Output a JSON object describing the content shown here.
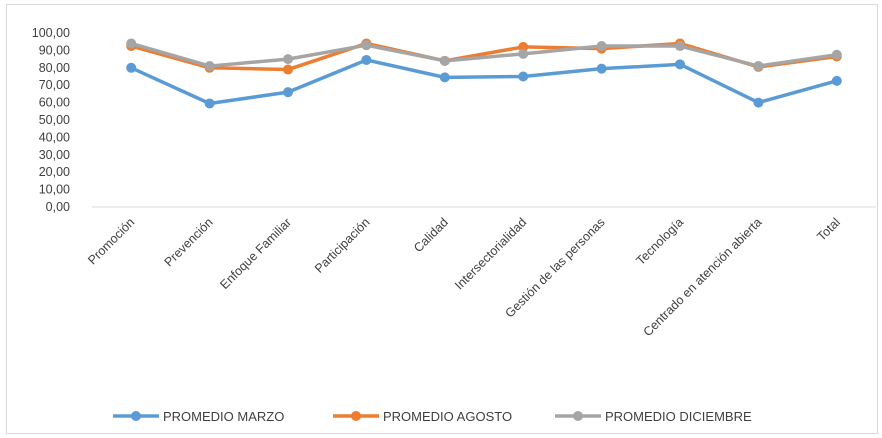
{
  "chart_data": {
    "type": "line",
    "categories": [
      "Promoción",
      "Prevención",
      "Enfoque Familiar",
      "Participación",
      "Calidad",
      "Intersectorialidad",
      "Gestión de las personas",
      "Tecnología",
      "Centrado en atención abierta",
      "Total"
    ],
    "y_ticks": [
      "0,00",
      "10,00",
      "20,00",
      "30,00",
      "40,00",
      "50,00",
      "60,00",
      "70,00",
      "80,00",
      "90,00",
      "100,00"
    ],
    "ylim": [
      0,
      100
    ],
    "grid": false,
    "legend_position": "bottom",
    "series": [
      {
        "name": "PROMEDIO MARZO",
        "color": "#5b9bd5",
        "values": [
          80,
          59.5,
          66,
          84.5,
          74.5,
          75,
          79.5,
          82,
          60,
          72.5
        ]
      },
      {
        "name": "PROMEDIO AGOSTO",
        "color": "#ed7d31",
        "values": [
          92.5,
          80,
          79,
          94,
          84,
          92,
          91,
          94,
          80.5,
          86.5
        ]
      },
      {
        "name": "PROMEDIO DICIEMBRE",
        "color": "#a5a5a5",
        "values": [
          94,
          81,
          85,
          93,
          84,
          88,
          92.5,
          92.5,
          81,
          87.5
        ]
      }
    ]
  }
}
